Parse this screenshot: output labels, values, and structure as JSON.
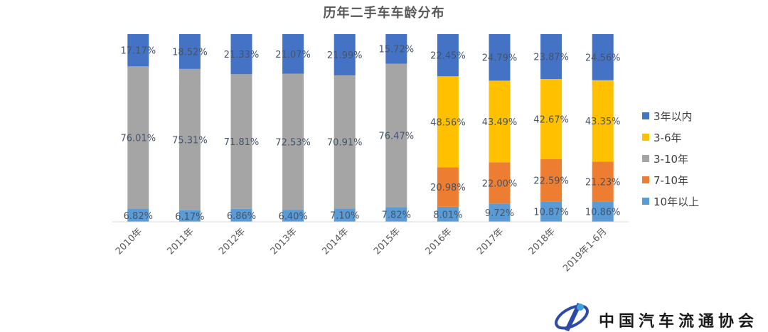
{
  "chart_data": {
    "type": "bar",
    "stacked": true,
    "normalized": true,
    "title": "历年二手车车龄分布",
    "categories": [
      "2010年",
      "2011年",
      "2012年",
      "2013年",
      "2014年",
      "2015年",
      "2016年",
      "2017年",
      "2018年",
      "2019年1-6月"
    ],
    "series": [
      {
        "name": "10年以上",
        "color": "#5B9BD5",
        "values": [
          6.82,
          6.17,
          6.86,
          6.4,
          7.1,
          7.82,
          8.01,
          9.72,
          10.87,
          10.86
        ],
        "labels": [
          "6.82%",
          "6.17%",
          "6.86%",
          "6.40%",
          "7.10%",
          "7.82%",
          "8.01%",
          "9.72%",
          "10.87%",
          "10.86%"
        ]
      },
      {
        "name": "7-10年",
        "color": "#ED7D31",
        "values": [
          null,
          null,
          null,
          null,
          null,
          null,
          20.98,
          22.0,
          22.59,
          21.23
        ],
        "labels": [
          "",
          "",
          "",
          "",
          "",
          "",
          "20.98%",
          "22.00%",
          "22.59%",
          "21.23%"
        ]
      },
      {
        "name": "3-10年",
        "color": "#A5A5A5",
        "values": [
          76.01,
          75.31,
          71.81,
          72.53,
          70.91,
          76.47,
          null,
          null,
          null,
          null
        ],
        "labels": [
          "76.01%",
          "75.31%",
          "71.81%",
          "72.53%",
          "70.91%",
          "76.47%",
          "",
          "",
          "",
          ""
        ]
      },
      {
        "name": "3-6年",
        "color": "#FFC000",
        "values": [
          null,
          null,
          null,
          null,
          null,
          null,
          48.56,
          43.49,
          42.67,
          43.35
        ],
        "labels": [
          "",
          "",
          "",
          "",
          "",
          "",
          "48.56%",
          "43.49%",
          "42.67%",
          "43.35%"
        ]
      },
      {
        "name": "3年以内",
        "color": "#4472C4",
        "values": [
          17.17,
          18.52,
          21.33,
          21.07,
          21.99,
          15.72,
          22.45,
          24.79,
          23.87,
          24.56
        ],
        "labels": [
          "17.17%",
          "18.52%",
          "21.33%",
          "21.07%",
          "21.99%",
          "15.72%",
          "22.45%",
          "24.79%",
          "23.87%",
          "24.56%"
        ]
      }
    ],
    "legend_order": [
      "3年以内",
      "3-6年",
      "3-10年",
      "7-10年",
      "10年以上"
    ],
    "legend_position": "right",
    "ylim": [
      0,
      100
    ],
    "grid": false
  },
  "logo": {
    "org_name": "中国汽车流通协会"
  }
}
